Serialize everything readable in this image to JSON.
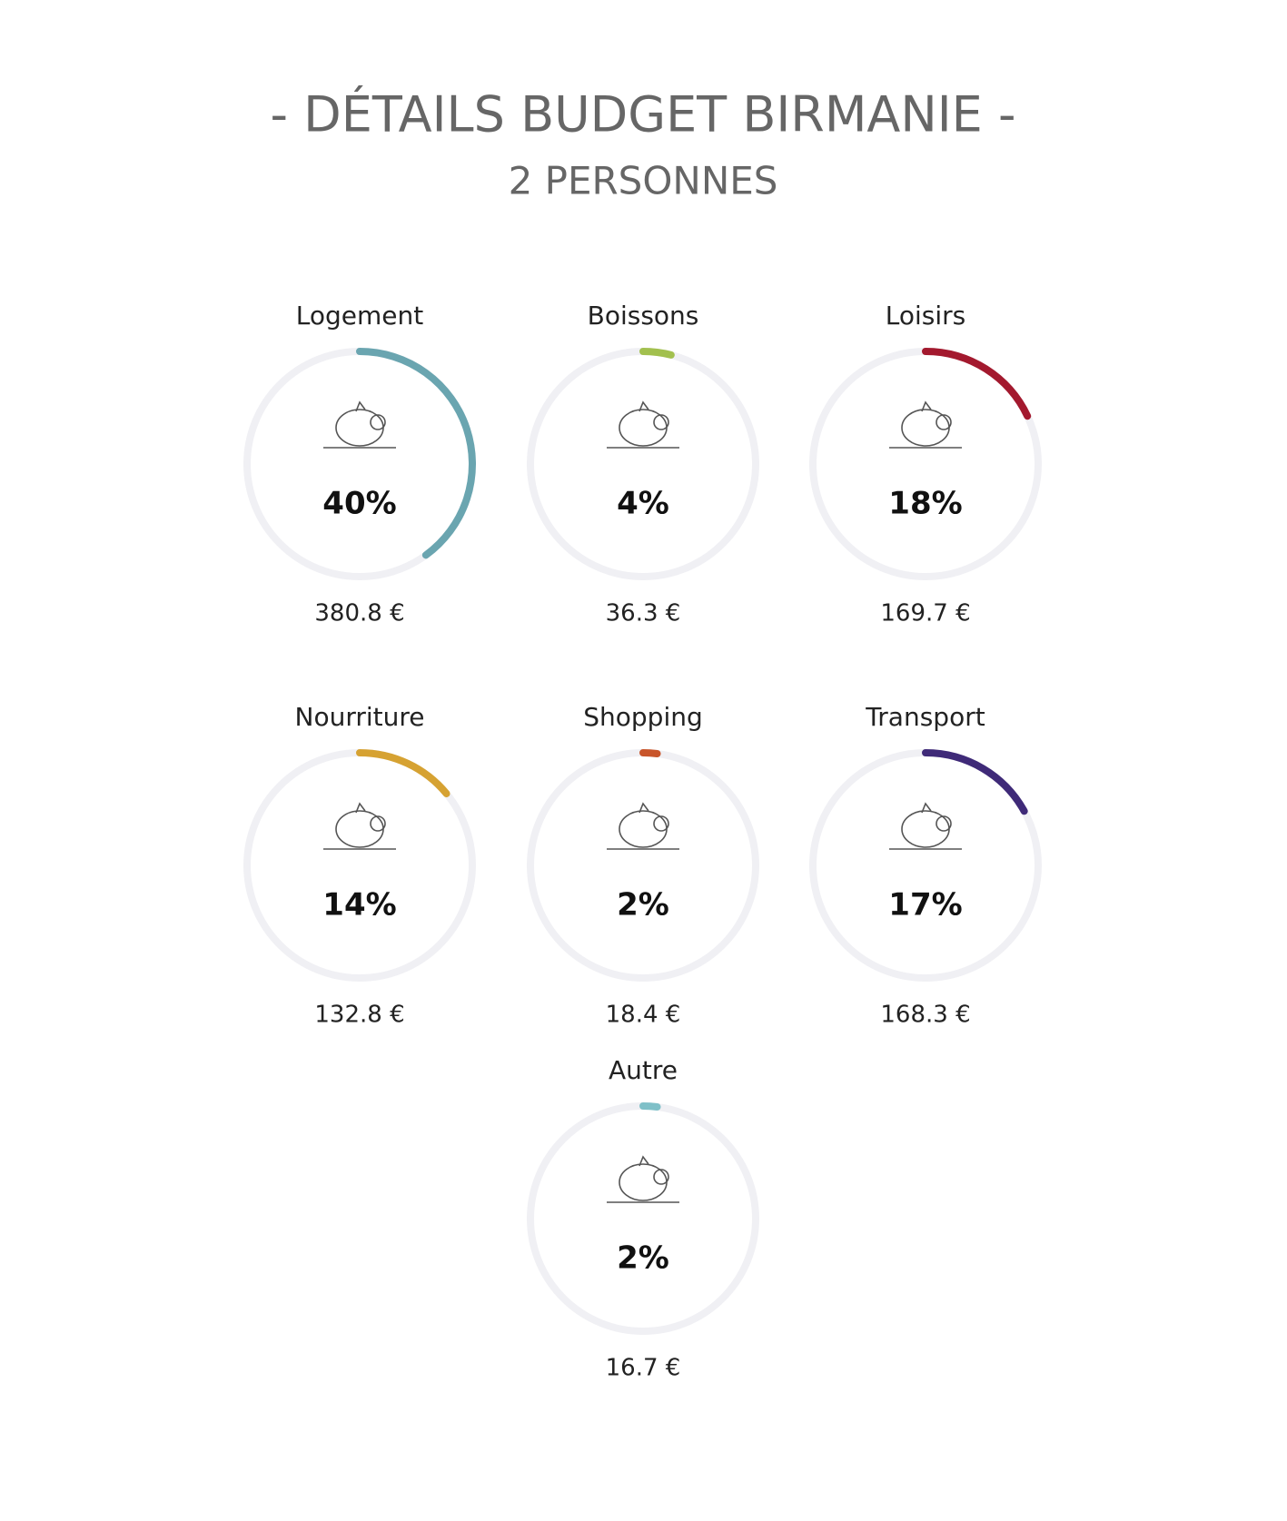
{
  "chart_data": {
    "type": "progress-rings",
    "title": "- DÉTAILS BUDGET BIRMANIE -",
    "subtitle": "2 PERSONNES",
    "categories": [
      "Logement",
      "Boissons",
      "Loisirs",
      "Nourriture",
      "Shopping",
      "Transport",
      "Autre"
    ],
    "values": [
      40,
      4,
      18,
      14,
      2,
      17,
      2
    ],
    "value_labels": [
      "40%",
      "4%",
      "18%",
      "14%",
      "2%",
      "17%",
      "2%"
    ],
    "amounts": [
      "380.8 €",
      "36.3 €",
      "169.7 €",
      "132.8 €",
      "18.4 €",
      "168.3 €",
      "16.7 €"
    ],
    "colors": [
      "#6aa5b0",
      "#a2c04e",
      "#a3192e",
      "#d6a232",
      "#c8552a",
      "#3f2a78",
      "#7fc0c8"
    ],
    "ylim": [
      0,
      100
    ]
  }
}
